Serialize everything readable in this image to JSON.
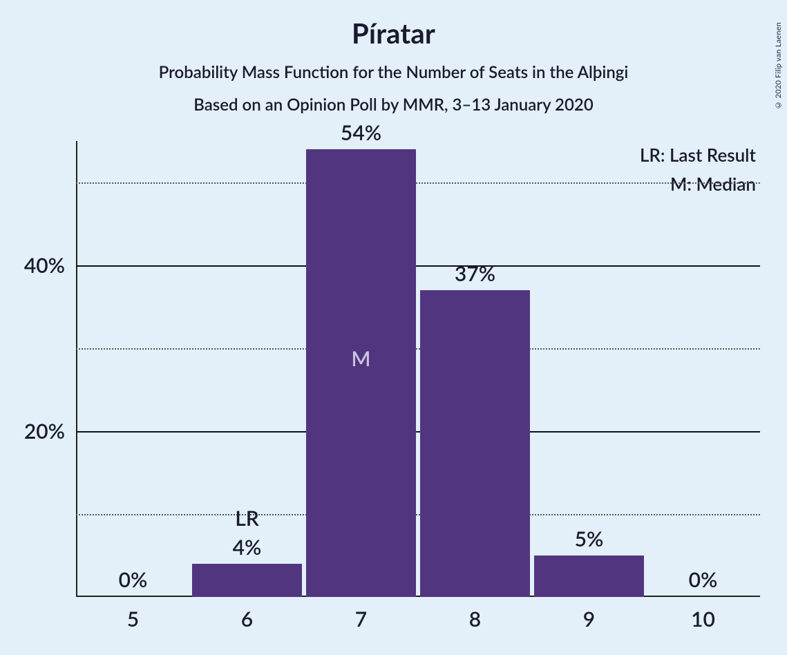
{
  "copyright": "© 2020 Filip van Laenen",
  "title": "Píratar",
  "subtitle": "Probability Mass Function for the Number of Seats in the Alþingi",
  "subtitle2": "Based on an Opinion Poll by MMR, 3–13 January 2020",
  "legend": {
    "lr": "LR: Last Result",
    "m": "M: Median"
  },
  "chart": {
    "type": "bar",
    "background_color": "#e3f0fa",
    "bar_color": "#52357f",
    "text_color": "#1a1a2e",
    "inside_label_color": "#c8c3e0",
    "grid_color_solid": "#111111",
    "grid_color_dotted": "#555555",
    "ylim": [
      0,
      55
    ],
    "y_major_ticks": [
      20,
      40
    ],
    "y_minor_ticks": [
      10,
      30,
      50
    ],
    "y_tick_labels": {
      "20": "20%",
      "40": "40%"
    },
    "categories": [
      "5",
      "6",
      "7",
      "8",
      "9",
      "10"
    ],
    "values": [
      0,
      4,
      54,
      37,
      5,
      0
    ],
    "value_labels": [
      "0%",
      "4%",
      "54%",
      "37%",
      "5%",
      "0%"
    ],
    "annotations": [
      {
        "index": 1,
        "text": "LR",
        "position": "above"
      },
      {
        "index": 2,
        "text": "M",
        "position": "inside"
      }
    ],
    "bar_width_ratio": 0.96,
    "label_fontsize": 30,
    "title_fontsize": 40,
    "subtitle_fontsize": 24
  }
}
